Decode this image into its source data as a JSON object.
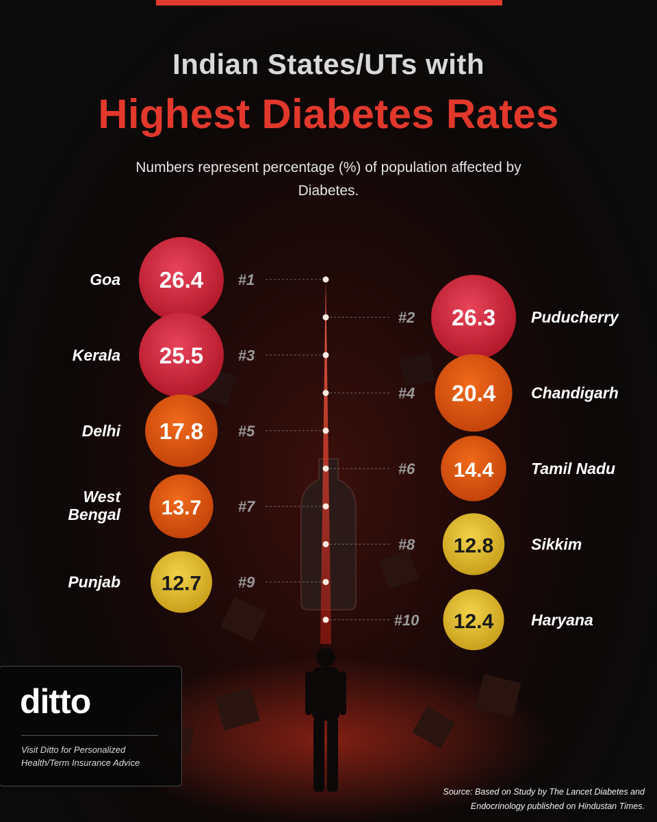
{
  "header": {
    "title_line1": "Indian States/UTs with",
    "title_line2": "Highest Diabetes Rates",
    "subtitle": "Numbers represent percentage (%) of population affected by Diabetes."
  },
  "chart_data": {
    "type": "ranked-bubble",
    "title": "Indian States/UTs with Highest Diabetes Rates",
    "unit": "% of population affected by Diabetes",
    "items": [
      {
        "rank": "#1",
        "name": "Goa",
        "value": 26.4,
        "side": "left"
      },
      {
        "rank": "#2",
        "name": "Puducherry",
        "value": 26.3,
        "side": "right"
      },
      {
        "rank": "#3",
        "name": "Kerala",
        "value": 25.5,
        "side": "left"
      },
      {
        "rank": "#4",
        "name": "Chandigarh",
        "value": 20.4,
        "side": "right"
      },
      {
        "rank": "#5",
        "name": "Delhi",
        "value": 17.8,
        "side": "left"
      },
      {
        "rank": "#6",
        "name": "Tamil Nadu",
        "value": 14.4,
        "side": "right"
      },
      {
        "rank": "#7",
        "name": "West Bengal",
        "value": 13.7,
        "side": "left"
      },
      {
        "rank": "#8",
        "name": "Sikkim",
        "value": 12.8,
        "side": "right"
      },
      {
        "rank": "#9",
        "name": "Punjab",
        "value": 12.7,
        "side": "left"
      },
      {
        "rank": "#10",
        "name": "Haryana",
        "value": 12.4,
        "side": "right"
      }
    ],
    "colors": {
      "high": "#d42a3e",
      "mid": "#e85a12",
      "low": "#e8c53a"
    }
  },
  "brand": {
    "logo": "ditto",
    "tagline": "Visit Ditto for Personalized Health/Term Insurance Advice"
  },
  "source": {
    "line1": "Source: Based on Study by The Lancet Diabetes and",
    "line2": "Endocrinology published on Hindustan Times."
  }
}
